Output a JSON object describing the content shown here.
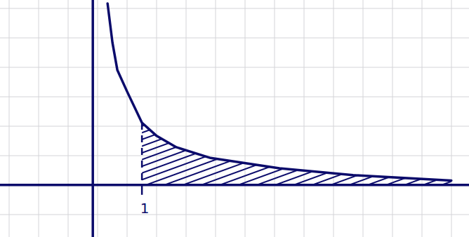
{
  "chart_data": {
    "type": "line",
    "xlim": [
      -1.89,
      7.66
    ],
    "ylim": [
      -1.06,
      3.77
    ],
    "xticks": [
      1
    ],
    "tick_labels": "x",
    "series": [
      {
        "type": "line",
        "color": "#0b0b6b",
        "line_style": "solid",
        "x": [
          0.3,
          0.4,
          0.5,
          0.7,
          1,
          1.3,
          1.7,
          2.4,
          3.8,
          5.3,
          7.3
        ],
        "values": [
          3.7,
          2.9,
          2.34,
          1.9,
          1.27,
          1.0,
          0.77,
          0.55,
          0.34,
          0.2,
          0.09
        ]
      },
      {
        "type": "area",
        "color": "#0b0b6b",
        "line_style": "dashed",
        "x": [
          1,
          1.3,
          1.7,
          2.4,
          3.8,
          5.3,
          7.3
        ],
        "values": [
          1.27,
          1.0,
          0.77,
          0.55,
          0.34,
          0.2,
          0.09
        ]
      }
    ]
  }
}
